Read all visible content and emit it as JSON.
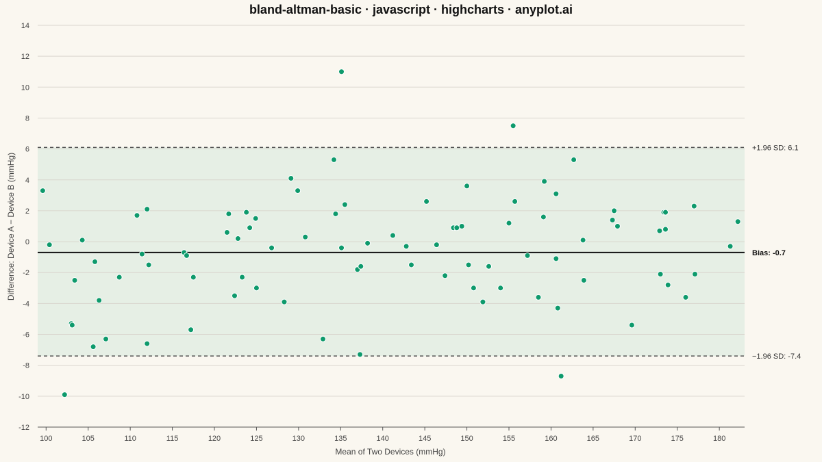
{
  "chart_data": {
    "type": "scatter",
    "title": "bland-altman-basic · javascript · highcharts · anyplot.ai",
    "xlabel": "Mean of Two Devices (mmHg)",
    "ylabel": "Difference: Device A − Device B (mmHg)",
    "xlim": [
      99,
      183
    ],
    "ylim": [
      -12,
      14
    ],
    "xticks": [
      100,
      105,
      110,
      115,
      120,
      125,
      130,
      135,
      140,
      145,
      150,
      155,
      160,
      165,
      170,
      175,
      180
    ],
    "yticks": [
      -12,
      -10,
      -8,
      -6,
      -4,
      -2,
      0,
      2,
      4,
      6,
      8,
      10,
      12,
      14
    ],
    "grid": "horizontal",
    "colors": {
      "point": "#0E9A6C",
      "band": "#E6EFE5",
      "bias_line": "#111111",
      "limit_line": "#555555",
      "background": "#FAF7F0"
    },
    "bias": {
      "value": -0.7,
      "label": "Bias: -0.7"
    },
    "upper_loa": {
      "value": 6.1,
      "label": "+1.96 SD: 6.1"
    },
    "lower_loa": {
      "value": -7.4,
      "label": "−1.96 SD: -7.4"
    },
    "points": [
      [
        99.6,
        3.3
      ],
      [
        100.4,
        -0.2
      ],
      [
        102.2,
        -9.9
      ],
      [
        103.0,
        -5.3
      ],
      [
        103.1,
        -5.4
      ],
      [
        103.4,
        -2.5
      ],
      [
        104.3,
        0.1
      ],
      [
        105.6,
        -6.8
      ],
      [
        105.8,
        -1.3
      ],
      [
        106.3,
        -3.8
      ],
      [
        107.1,
        -6.3
      ],
      [
        108.7,
        -2.3
      ],
      [
        110.8,
        1.7
      ],
      [
        111.4,
        -0.8
      ],
      [
        112.0,
        2.1
      ],
      [
        112.0,
        -6.6
      ],
      [
        112.2,
        -1.5
      ],
      [
        116.4,
        -0.7
      ],
      [
        116.7,
        -0.9
      ],
      [
        117.2,
        -5.7
      ],
      [
        117.5,
        -2.3
      ],
      [
        121.5,
        0.6
      ],
      [
        121.7,
        1.8
      ],
      [
        122.4,
        -3.5
      ],
      [
        122.8,
        0.2
      ],
      [
        123.3,
        -2.3
      ],
      [
        123.8,
        1.9
      ],
      [
        124.2,
        0.9
      ],
      [
        124.9,
        1.5
      ],
      [
        125.0,
        -3.0
      ],
      [
        126.8,
        -0.4
      ],
      [
        128.3,
        -3.9
      ],
      [
        129.1,
        4.1
      ],
      [
        129.9,
        3.3
      ],
      [
        130.8,
        0.3
      ],
      [
        132.9,
        -6.3
      ],
      [
        134.2,
        5.3
      ],
      [
        134.4,
        1.8
      ],
      [
        135.1,
        11.0
      ],
      [
        135.1,
        -0.4
      ],
      [
        135.5,
        2.4
      ],
      [
        137.0,
        -1.8
      ],
      [
        137.4,
        -1.6
      ],
      [
        137.3,
        -7.3
      ],
      [
        138.2,
        -0.1
      ],
      [
        141.2,
        0.4
      ],
      [
        142.8,
        -0.3
      ],
      [
        143.4,
        -1.5
      ],
      [
        145.2,
        2.6
      ],
      [
        146.4,
        -0.2
      ],
      [
        147.4,
        -2.2
      ],
      [
        148.4,
        0.9
      ],
      [
        148.8,
        0.9
      ],
      [
        149.4,
        1.0
      ],
      [
        150.0,
        3.6
      ],
      [
        150.2,
        -1.5
      ],
      [
        150.8,
        -3.0
      ],
      [
        151.9,
        -3.9
      ],
      [
        152.6,
        -1.6
      ],
      [
        154.0,
        -3.0
      ],
      [
        155.0,
        1.2
      ],
      [
        155.5,
        7.5
      ],
      [
        155.7,
        2.6
      ],
      [
        157.2,
        -0.9
      ],
      [
        158.5,
        -3.6
      ],
      [
        159.1,
        1.6
      ],
      [
        159.2,
        3.9
      ],
      [
        160.6,
        3.1
      ],
      [
        160.6,
        -1.1
      ],
      [
        160.8,
        -4.3
      ],
      [
        161.2,
        -8.7
      ],
      [
        162.7,
        5.3
      ],
      [
        163.8,
        0.1
      ],
      [
        163.9,
        -2.5
      ],
      [
        167.3,
        1.4
      ],
      [
        167.5,
        2.0
      ],
      [
        167.9,
        1.0
      ],
      [
        169.6,
        -5.4
      ],
      [
        172.9,
        0.7
      ],
      [
        173.0,
        -2.1
      ],
      [
        173.4,
        1.9
      ],
      [
        173.6,
        1.9
      ],
      [
        173.6,
        0.8
      ],
      [
        173.9,
        -2.8
      ],
      [
        176.0,
        -3.6
      ],
      [
        177.0,
        2.3
      ],
      [
        177.1,
        -2.1
      ],
      [
        181.3,
        -0.3
      ],
      [
        182.2,
        1.3
      ]
    ]
  }
}
